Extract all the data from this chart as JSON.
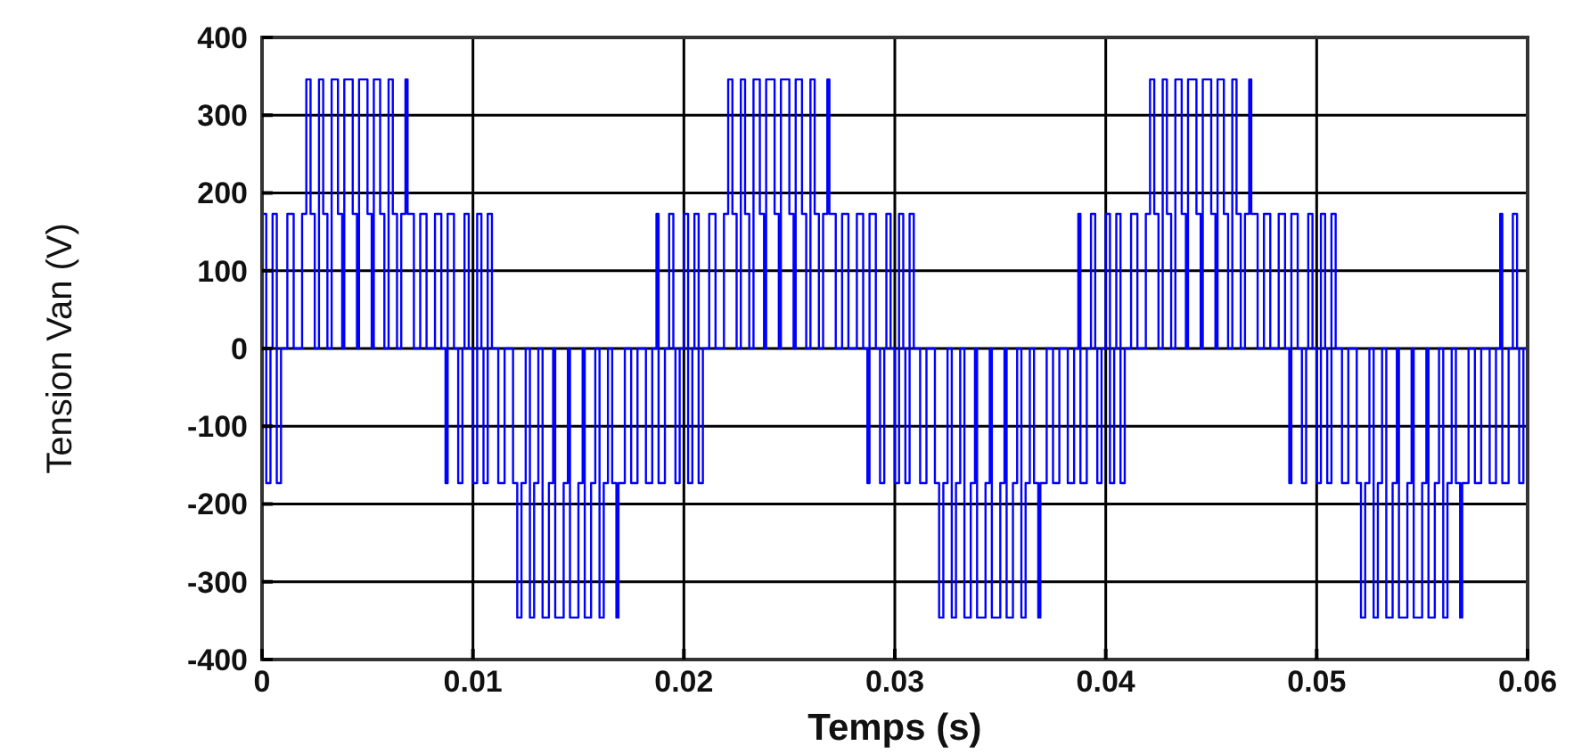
{
  "chart_data": {
    "type": "step",
    "xlabel": "Temps (s)",
    "ylabel": "Tension Van (V)",
    "xlim": [
      0,
      0.06
    ],
    "ylim": [
      -400,
      400
    ],
    "xticks": [
      0,
      0.01,
      0.02,
      0.03,
      0.04,
      0.05,
      0.06
    ],
    "yticks": [
      -400,
      -300,
      -200,
      -100,
      0,
      100,
      200,
      300,
      400
    ],
    "grid": true,
    "line_style": "solid",
    "marker": "none",
    "series": [
      {
        "color": "#0000ff",
        "x": [
          0.0,
          0.0002,
          0.0004,
          0.0005,
          0.0007,
          0.0009,
          0.0012,
          0.0015,
          0.0019,
          0.0021,
          0.0023,
          0.0025,
          0.0027,
          0.0029,
          0.0031,
          0.0033,
          0.0036,
          0.0038,
          0.0039,
          0.0043,
          0.0045,
          0.0046,
          0.005,
          0.0052,
          0.0053,
          0.0056,
          0.0058,
          0.006,
          0.0062,
          0.0064,
          0.0066,
          0.0068,
          0.0069,
          0.0072,
          0.0075,
          0.0078,
          0.0082,
          0.0085,
          0.0087,
          0.0088,
          0.0091,
          0.0093,
          0.0095,
          0.0096,
          0.0098,
          0.01,
          0.0102,
          0.0104,
          0.0105,
          0.0107,
          0.0109,
          0.0112,
          0.0115,
          0.0119,
          0.0121,
          0.0123,
          0.0125,
          0.0127,
          0.0129,
          0.0131,
          0.0133,
          0.0136,
          0.0138,
          0.0139,
          0.0143,
          0.0145,
          0.0146,
          0.015,
          0.0152,
          0.0153,
          0.0156,
          0.0158,
          0.016,
          0.0162,
          0.0164,
          0.0166,
          0.0168,
          0.0169,
          0.0172,
          0.0175,
          0.0178,
          0.0182,
          0.0185,
          0.0187,
          0.0188,
          0.0191,
          0.0193,
          0.0195,
          0.0196,
          0.0198,
          0.02,
          0.0202,
          0.0204,
          0.0205,
          0.0207,
          0.0209,
          0.0212,
          0.0215,
          0.0219,
          0.0221,
          0.0223,
          0.0225,
          0.0227,
          0.0229,
          0.0231,
          0.0233,
          0.0236,
          0.0238,
          0.0239,
          0.0243,
          0.0245,
          0.0246,
          0.025,
          0.0252,
          0.0253,
          0.0256,
          0.0258,
          0.026,
          0.0262,
          0.0264,
          0.0266,
          0.0268,
          0.0269,
          0.0272,
          0.0275,
          0.0278,
          0.0282,
          0.0285,
          0.0287,
          0.0288,
          0.0291,
          0.0293,
          0.0295,
          0.0296,
          0.0298,
          0.03,
          0.0302,
          0.0304,
          0.0305,
          0.0307,
          0.0309,
          0.0312,
          0.0315,
          0.0319,
          0.0321,
          0.0323,
          0.0325,
          0.0327,
          0.0329,
          0.0331,
          0.0333,
          0.0336,
          0.0338,
          0.0339,
          0.0343,
          0.0345,
          0.0346,
          0.035,
          0.0352,
          0.0353,
          0.0356,
          0.0358,
          0.036,
          0.0362,
          0.0364,
          0.0366,
          0.0368,
          0.0369,
          0.0372,
          0.0375,
          0.0378,
          0.0382,
          0.0385,
          0.0387,
          0.0388,
          0.0391,
          0.0393,
          0.0395,
          0.0396,
          0.0398,
          0.04,
          0.0402,
          0.0404,
          0.0405,
          0.0407,
          0.0409,
          0.0412,
          0.0415,
          0.0419,
          0.0421,
          0.0423,
          0.0425,
          0.0427,
          0.0429,
          0.0431,
          0.0433,
          0.0436,
          0.0438,
          0.0439,
          0.0443,
          0.0445,
          0.0446,
          0.045,
          0.0452,
          0.0453,
          0.0456,
          0.0458,
          0.046,
          0.0462,
          0.0464,
          0.0466,
          0.0468,
          0.0469,
          0.0472,
          0.0475,
          0.0478,
          0.0482,
          0.0485,
          0.0487,
          0.0488,
          0.0491,
          0.0493,
          0.0495,
          0.0496,
          0.0498,
          0.05,
          0.0502,
          0.0504,
          0.0505,
          0.0507,
          0.0509,
          0.0512,
          0.0515,
          0.0519,
          0.0521,
          0.0523,
          0.0525,
          0.0527,
          0.0529,
          0.0531,
          0.0533,
          0.0536,
          0.0538,
          0.0539,
          0.0543,
          0.0545,
          0.0546,
          0.055,
          0.0552,
          0.0553,
          0.0556,
          0.0558,
          0.056,
          0.0562,
          0.0564,
          0.0566,
          0.0568,
          0.0569,
          0.0572,
          0.0575,
          0.0578,
          0.0582,
          0.0585,
          0.0587,
          0.0588,
          0.0591,
          0.0593,
          0.0595,
          0.0596,
          0.0598,
          0.06
        ],
        "values": [
          173,
          -173,
          0,
          173,
          -173,
          0,
          173,
          0,
          173,
          346,
          173,
          0,
          346,
          173,
          0,
          346,
          173,
          0,
          346,
          173,
          0,
          346,
          173,
          0,
          346,
          173,
          0,
          346,
          173,
          0,
          173,
          346,
          173,
          0,
          173,
          0,
          173,
          0,
          -173,
          173,
          0,
          -173,
          0,
          173,
          0,
          -173,
          173,
          0,
          -173,
          173,
          0,
          -173,
          0,
          -173,
          -346,
          -173,
          0,
          -346,
          -173,
          0,
          -346,
          -173,
          0,
          -346,
          -173,
          0,
          -346,
          -173,
          0,
          -346,
          -173,
          0,
          -346,
          -173,
          0,
          -173,
          -346,
          -173,
          0,
          -173,
          0,
          -173,
          0,
          173,
          -173,
          0,
          173,
          0,
          -173,
          0,
          173,
          -173,
          0,
          173,
          -173,
          0,
          173,
          0,
          173,
          346,
          173,
          0,
          346,
          173,
          0,
          346,
          173,
          0,
          346,
          173,
          0,
          346,
          173,
          0,
          346,
          173,
          0,
          346,
          173,
          0,
          173,
          346,
          173,
          0,
          173,
          0,
          173,
          0,
          -173,
          173,
          0,
          -173,
          0,
          173,
          0,
          -173,
          173,
          0,
          -173,
          173,
          0,
          -173,
          0,
          -173,
          -346,
          -173,
          0,
          -346,
          -173,
          0,
          -346,
          -173,
          0,
          -346,
          -173,
          0,
          -346,
          -173,
          0,
          -346,
          -173,
          0,
          -346,
          -173,
          0,
          -173,
          -346,
          -173,
          0,
          -173,
          0,
          -173,
          0,
          173,
          -173,
          0,
          173,
          0,
          -173,
          0,
          173,
          -173,
          0,
          173,
          -173,
          0,
          173,
          0,
          173,
          346,
          173,
          0,
          346,
          173,
          0,
          346,
          173,
          0,
          346,
          173,
          0,
          346,
          173,
          0,
          346,
          173,
          0,
          346,
          173,
          0,
          173,
          346,
          173,
          0,
          173,
          0,
          173,
          0,
          -173,
          173,
          0,
          -173,
          0,
          173,
          0,
          -173,
          173,
          0,
          -173,
          173,
          0,
          -173,
          0,
          -173,
          -346,
          -173,
          0,
          -346,
          -173,
          0,
          -346,
          -173,
          0,
          -346,
          -173,
          0,
          -346,
          -173,
          0,
          -346,
          -173,
          0,
          -346,
          -173,
          0,
          -173,
          -346,
          -173,
          0,
          -173,
          0,
          -173,
          0,
          173,
          -173,
          0,
          173,
          0,
          -173,
          0,
          0
        ]
      }
    ]
  }
}
